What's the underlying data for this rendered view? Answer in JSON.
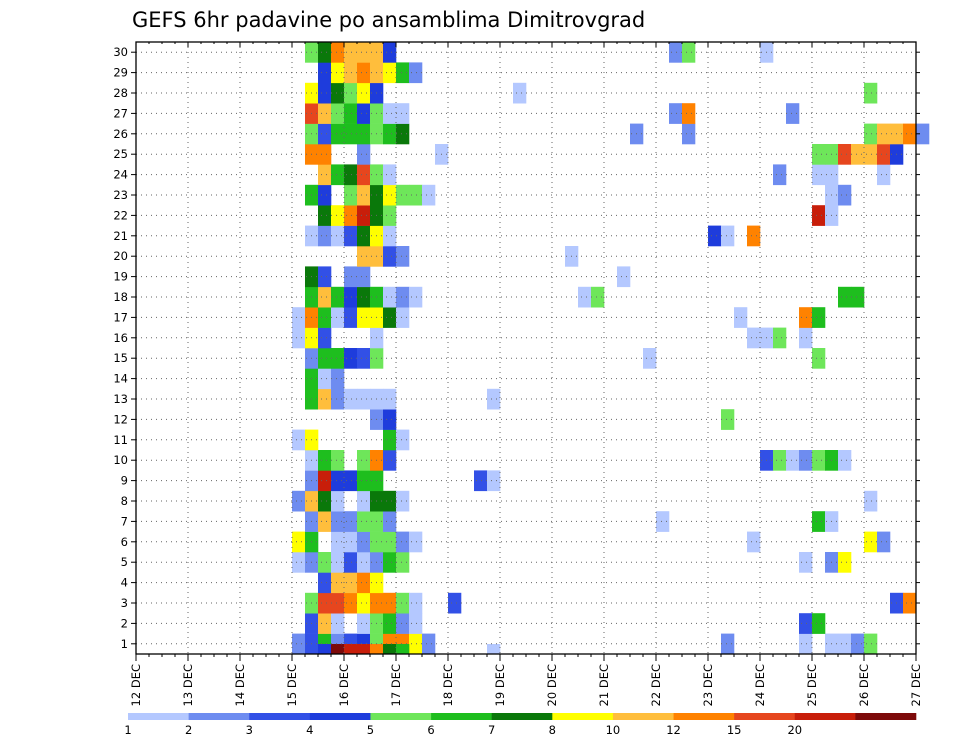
{
  "chart_data": {
    "type": "heatmap",
    "title": "GEFS 6hr padavine po ansamblima Dimitrovgrad",
    "xlabel": "",
    "ylabel": "",
    "x_step_hours": 6,
    "x_range": [
      "12 DEC 00Z",
      "27 DEC 00Z"
    ],
    "y_range": [
      0,
      30
    ],
    "grid": true,
    "x_tick_labels": [
      "12 DEC",
      "13 DEC",
      "14 DEC",
      "15 DEC",
      "16 DEC",
      "17 DEC",
      "18 DEC",
      "19 DEC",
      "20 DEC",
      "21 DEC",
      "22 DEC",
      "23 DEC",
      "24 DEC",
      "25 DEC",
      "26 DEC",
      "27 DEC"
    ],
    "y_tick_labels": [
      "1",
      "2",
      "3",
      "4",
      "5",
      "6",
      "7",
      "8",
      "9",
      "10",
      "11",
      "12",
      "13",
      "14",
      "15",
      "16",
      "17",
      "18",
      "19",
      "20",
      "21",
      "22",
      "23",
      "24",
      "25",
      "26",
      "27",
      "28",
      "29",
      "30"
    ],
    "colorbar": {
      "placement": "bottom",
      "colors": [
        "#b4c8ff",
        "#6e8cf0",
        "#3250e6",
        "#1e3cdc",
        "#6ee65a",
        "#1ebe1e",
        "#0a780a",
        "#ffff00",
        "#ffbe3c",
        "#ff8200",
        "#e6461e",
        "#c81e0a",
        "#7d0a0a"
      ],
      "labels": [
        "1",
        "2",
        "3",
        "4",
        "5",
        "6",
        "7",
        "8",
        "10",
        "12",
        "15",
        "20"
      ]
    },
    "member_cells": {
      "1": [
        [
          12,
          2
        ],
        [
          13,
          3
        ],
        [
          14,
          6
        ],
        [
          15,
          2
        ],
        [
          16,
          3
        ],
        [
          17,
          4
        ],
        [
          18,
          5
        ],
        [
          19,
          10
        ],
        [
          20,
          10
        ],
        [
          21,
          8
        ],
        [
          22,
          2
        ],
        [
          45,
          2
        ],
        [
          51,
          1
        ],
        [
          53,
          1
        ],
        [
          54,
          1
        ],
        [
          55,
          2
        ],
        [
          56,
          5
        ]
      ],
      "2": [
        [
          13,
          3
        ],
        [
          14,
          9
        ],
        [
          15,
          1
        ],
        [
          17,
          1
        ],
        [
          18,
          5
        ],
        [
          19,
          6
        ],
        [
          20,
          2
        ],
        [
          21,
          1
        ],
        [
          51,
          3
        ],
        [
          52,
          6
        ]
      ],
      "3": [
        [
          13,
          5
        ],
        [
          14,
          11
        ],
        [
          15,
          11
        ],
        [
          16,
          10
        ],
        [
          17,
          8
        ],
        [
          18,
          10
        ],
        [
          19,
          10
        ],
        [
          20,
          5
        ],
        [
          21,
          1
        ],
        [
          24,
          3
        ],
        [
          58,
          3
        ],
        [
          59,
          10
        ]
      ],
      "4": [
        [
          14,
          3
        ],
        [
          15,
          9
        ],
        [
          16,
          9
        ],
        [
          17,
          10
        ],
        [
          18,
          8
        ]
      ],
      "5": [
        [
          12,
          1
        ],
        [
          13,
          2
        ],
        [
          14,
          5
        ],
        [
          15,
          1
        ],
        [
          16,
          3
        ],
        [
          17,
          1
        ],
        [
          18,
          2
        ],
        [
          19,
          6
        ],
        [
          20,
          5
        ],
        [
          51,
          1
        ],
        [
          53,
          2
        ],
        [
          54,
          8
        ]
      ],
      "6": [
        [
          12,
          8
        ],
        [
          13,
          6
        ],
        [
          15,
          1
        ],
        [
          16,
          1
        ],
        [
          17,
          2
        ],
        [
          18,
          5
        ],
        [
          19,
          5
        ],
        [
          20,
          2
        ],
        [
          21,
          1
        ],
        [
          47,
          1
        ],
        [
          56,
          8
        ],
        [
          57,
          2
        ]
      ],
      "7": [
        [
          13,
          2
        ],
        [
          14,
          9
        ],
        [
          15,
          2
        ],
        [
          16,
          2
        ],
        [
          17,
          5
        ],
        [
          18,
          5
        ],
        [
          19,
          2
        ],
        [
          40,
          1
        ],
        [
          52,
          6
        ],
        [
          53,
          1
        ]
      ],
      "8": [
        [
          12,
          2
        ],
        [
          13,
          9
        ],
        [
          14,
          7
        ],
        [
          15,
          1
        ],
        [
          17,
          1
        ],
        [
          18,
          7
        ],
        [
          19,
          7
        ],
        [
          20,
          1
        ],
        [
          56,
          1
        ]
      ],
      "9": [
        [
          13,
          2
        ],
        [
          14,
          12
        ],
        [
          15,
          4
        ],
        [
          16,
          4
        ],
        [
          17,
          6
        ],
        [
          18,
          6
        ],
        [
          26,
          3
        ],
        [
          27,
          1
        ]
      ],
      "10": [
        [
          13,
          1
        ],
        [
          14,
          6
        ],
        [
          15,
          5
        ],
        [
          17,
          5
        ],
        [
          18,
          10
        ],
        [
          19,
          3
        ],
        [
          48,
          3
        ],
        [
          49,
          5
        ],
        [
          50,
          1
        ],
        [
          51,
          2
        ],
        [
          52,
          5
        ],
        [
          53,
          6
        ],
        [
          54,
          1
        ]
      ],
      "11": [
        [
          12,
          1
        ],
        [
          13,
          8
        ],
        [
          19,
          6
        ],
        [
          20,
          1
        ]
      ],
      "12": [
        [
          18,
          2
        ],
        [
          19,
          4
        ],
        [
          45,
          5
        ]
      ],
      "13": [
        [
          13,
          6
        ],
        [
          14,
          9
        ],
        [
          15,
          2
        ],
        [
          16,
          1
        ],
        [
          17,
          1
        ],
        [
          18,
          1
        ],
        [
          19,
          1
        ],
        [
          27,
          1
        ]
      ],
      "14": [
        [
          13,
          6
        ],
        [
          14,
          1
        ],
        [
          15,
          2
        ]
      ],
      "15": [
        [
          13,
          2
        ],
        [
          14,
          6
        ],
        [
          15,
          6
        ],
        [
          16,
          4
        ],
        [
          17,
          3
        ],
        [
          18,
          5
        ],
        [
          39,
          1
        ],
        [
          52,
          5
        ]
      ],
      "16": [
        [
          12,
          1
        ],
        [
          13,
          8
        ],
        [
          14,
          3
        ],
        [
          18,
          1
        ],
        [
          47,
          1
        ],
        [
          48,
          1
        ],
        [
          49,
          5
        ],
        [
          51,
          1
        ]
      ],
      "17": [
        [
          12,
          1
        ],
        [
          13,
          10
        ],
        [
          14,
          6
        ],
        [
          15,
          1
        ],
        [
          16,
          3
        ],
        [
          17,
          8
        ],
        [
          18,
          8
        ],
        [
          19,
          7
        ],
        [
          20,
          1
        ],
        [
          46,
          1
        ],
        [
          51,
          10
        ],
        [
          52,
          6
        ]
      ],
      "18": [
        [
          13,
          6
        ],
        [
          14,
          9
        ],
        [
          15,
          6
        ],
        [
          16,
          4
        ],
        [
          17,
          7
        ],
        [
          18,
          6
        ],
        [
          19,
          1
        ],
        [
          20,
          2
        ],
        [
          21,
          1
        ],
        [
          34,
          1
        ],
        [
          35,
          5
        ],
        [
          54,
          6
        ],
        [
          55,
          6
        ]
      ],
      "19": [
        [
          13,
          7
        ],
        [
          14,
          3
        ],
        [
          16,
          2
        ],
        [
          17,
          2
        ],
        [
          37,
          1
        ]
      ],
      "20": [
        [
          17,
          9
        ],
        [
          18,
          9
        ],
        [
          19,
          3
        ],
        [
          20,
          2
        ],
        [
          33,
          1
        ]
      ],
      "21": [
        [
          13,
          1
        ],
        [
          14,
          2
        ],
        [
          15,
          1
        ],
        [
          16,
          3
        ],
        [
          17,
          7
        ],
        [
          18,
          8
        ],
        [
          19,
          1
        ],
        [
          44,
          4
        ],
        [
          45,
          1
        ],
        [
          47,
          10
        ]
      ],
      "22": [
        [
          14,
          7
        ],
        [
          15,
          8
        ],
        [
          16,
          10
        ],
        [
          17,
          12
        ],
        [
          18,
          7
        ],
        [
          19,
          5
        ],
        [
          52,
          12
        ],
        [
          53,
          1
        ]
      ],
      "23": [
        [
          13,
          6
        ],
        [
          14,
          4
        ],
        [
          16,
          5
        ],
        [
          17,
          9
        ],
        [
          18,
          7
        ],
        [
          19,
          8
        ],
        [
          20,
          5
        ],
        [
          21,
          5
        ],
        [
          22,
          1
        ],
        [
          53,
          1
        ],
        [
          54,
          2
        ]
      ],
      "24": [
        [
          14,
          9
        ],
        [
          15,
          6
        ],
        [
          16,
          7
        ],
        [
          17,
          11
        ],
        [
          18,
          5
        ],
        [
          19,
          1
        ],
        [
          49,
          2
        ],
        [
          52,
          1
        ],
        [
          53,
          1
        ],
        [
          57,
          1
        ]
      ],
      "25": [
        [
          13,
          10
        ],
        [
          14,
          10
        ],
        [
          17,
          2
        ],
        [
          23,
          1
        ],
        [
          52,
          5
        ],
        [
          53,
          5
        ],
        [
          54,
          11
        ],
        [
          55,
          9
        ],
        [
          56,
          9
        ],
        [
          57,
          11
        ],
        [
          58,
          4
        ]
      ],
      "26": [
        [
          13,
          5
        ],
        [
          14,
          3
        ],
        [
          15,
          6
        ],
        [
          16,
          6
        ],
        [
          17,
          6
        ],
        [
          18,
          5
        ],
        [
          19,
          6
        ],
        [
          20,
          7
        ],
        [
          38,
          2
        ],
        [
          42,
          2
        ],
        [
          56,
          5
        ],
        [
          57,
          9
        ],
        [
          58,
          9
        ],
        [
          59,
          10
        ],
        [
          60,
          2
        ]
      ],
      "27": [
        [
          13,
          11
        ],
        [
          14,
          9
        ],
        [
          15,
          5
        ],
        [
          16,
          6
        ],
        [
          17,
          4
        ],
        [
          18,
          5
        ],
        [
          19,
          1
        ],
        [
          20,
          1
        ],
        [
          41,
          2
        ],
        [
          42,
          10
        ],
        [
          50,
          2
        ]
      ],
      "28": [
        [
          13,
          8
        ],
        [
          14,
          4
        ],
        [
          15,
          7
        ],
        [
          16,
          5
        ],
        [
          17,
          8
        ],
        [
          18,
          4
        ],
        [
          29,
          1
        ],
        [
          56,
          5
        ]
      ],
      "29": [
        [
          14,
          4
        ],
        [
          15,
          8
        ],
        [
          16,
          9
        ],
        [
          17,
          10
        ],
        [
          18,
          9
        ],
        [
          19,
          8
        ],
        [
          20,
          6
        ],
        [
          21,
          2
        ]
      ],
      "30": [
        [
          13,
          5
        ],
        [
          14,
          7
        ],
        [
          15,
          10
        ],
        [
          16,
          9
        ],
        [
          17,
          9
        ],
        [
          18,
          9
        ],
        [
          19,
          4
        ],
        [
          41,
          2
        ],
        [
          42,
          5
        ],
        [
          48,
          1
        ]
      ],
      "bottom_strip": [
        [
          14,
          4
        ],
        [
          15,
          13
        ],
        [
          16,
          12
        ],
        [
          17,
          12
        ],
        [
          18,
          10
        ],
        [
          19,
          7
        ],
        [
          20,
          6
        ],
        [
          27,
          1
        ]
      ]
    }
  }
}
